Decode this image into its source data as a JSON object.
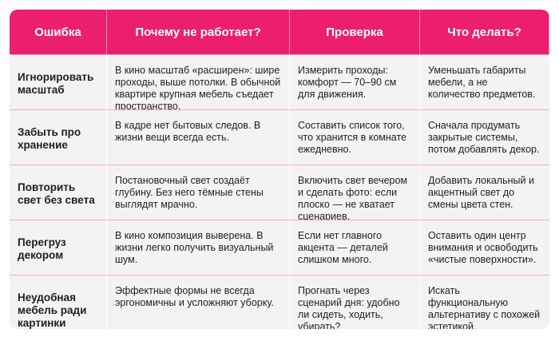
{
  "header": {
    "col_error": "Ошибка",
    "col_why": "Почему не работает?",
    "col_check": "Проверка",
    "col_todo": "Что делать?"
  },
  "rows": [
    {
      "error": "Игнорировать масштаб",
      "why": "В кино масштаб «расширен»: шире проходы, выше потолки. В обычной квартире крупная мебель съедает пространство.",
      "check": "Измерить проходы: комфорт — 70–90 см для движения.",
      "todo": "Уменьшать габариты мебели, а не количество предметов."
    },
    {
      "error": "Забыть про хранение",
      "why": "В кадре нет бытовых следов. В жизни вещи всегда есть.",
      "check": "Составить список того, что хранится в комнате ежедневно.",
      "todo": "Сначала продумать закрытые системы, потом добавлять декор."
    },
    {
      "error": "Повторить свет без света",
      "why": "Постановочный свет создаёт глубину. Без него тёмные стены выглядят мрачно.",
      "check": "Включить свет вечером и сделать фото: если плоско — не хватает сценариев.",
      "todo": "Добавить локальный и акцентный свет до смены цвета стен."
    },
    {
      "error": "Перегруз декором",
      "why": "В кино композиция выверена. В жизни легко получить визуальный шум.",
      "check": "Если нет главного акцента — деталей слишком много.",
      "todo": "Оставить один центр внимания и освободить «чистые поверхности»."
    },
    {
      "error": "Неудобная мебель ради картинки",
      "why": "Эффектные формы не всегда эргономичны и усложняют уборку.",
      "check": "Прогнать через сценарий дня: удобно ли сидеть, ходить, убирать?",
      "todo": "Искать функциональную альтернативу с похожей эстетикой."
    }
  ],
  "colors": {
    "header_bg": "#ec1f6f",
    "row_bg": "#f3f3f6",
    "divider": "#f3a9c6"
  }
}
